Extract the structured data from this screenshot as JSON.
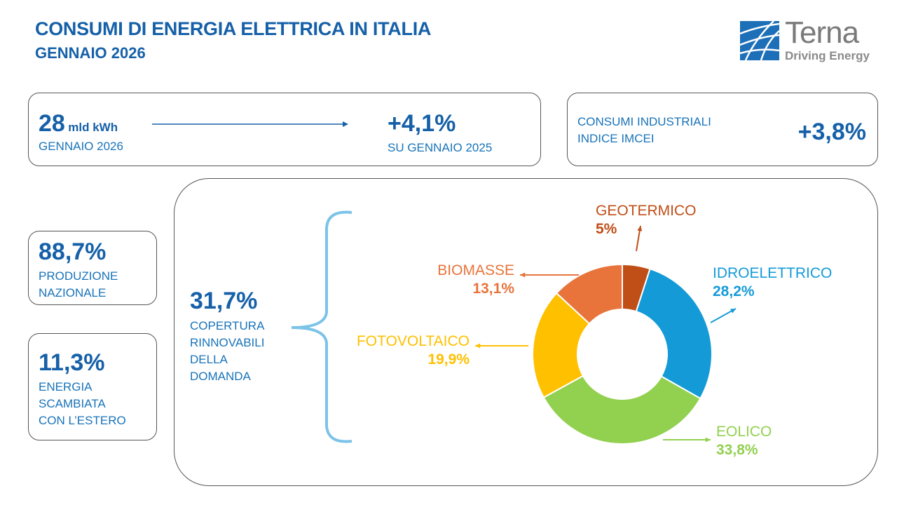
{
  "header": {
    "title": "CONSUMI DI ENERGIA ELETTRICA IN ITALIA",
    "subtitle": "GENNAIO 2026"
  },
  "logo": {
    "name": "Terna",
    "tagline": "Driving Energy"
  },
  "consumption": {
    "value": "28",
    "unit": "mld kWh",
    "period": "GENNAIO 2026",
    "change": "+4,1%",
    "change_label": "SU GENNAIO 2025"
  },
  "industrial": {
    "label_line1": "CONSUMI INDUSTRIALI",
    "label_line2": "INDICE IMCEI",
    "value": "+3,8%"
  },
  "production": {
    "value": "88,7%",
    "line1": "PRODUZIONE",
    "line2": "NAZIONALE"
  },
  "exchange": {
    "value": "11,3%",
    "line1": "ENERGIA",
    "line2": "SCAMBIATA",
    "line3": "CON L’ESTERO"
  },
  "renewables": {
    "value": "31,7%",
    "line1": "COPERTURA",
    "line2": "RINNOVABILI",
    "line3": "DELLA",
    "line4": "DOMANDA"
  },
  "chart_data": {
    "type": "pie",
    "donut": true,
    "categories": [
      "GEOTERMICO",
      "IDROELETTRICO",
      "EOLICO",
      "FOTOVOLTAICO",
      "BIOMASSE"
    ],
    "values": [
      5,
      28.2,
      33.8,
      19.9,
      13.1
    ],
    "labels": [
      "5%",
      "28,2%",
      "33,8%",
      "19,9%",
      "13,1%"
    ],
    "colors": [
      "#c04e17",
      "#149bd7",
      "#92d050",
      "#ffc000",
      "#e8743b"
    ]
  }
}
